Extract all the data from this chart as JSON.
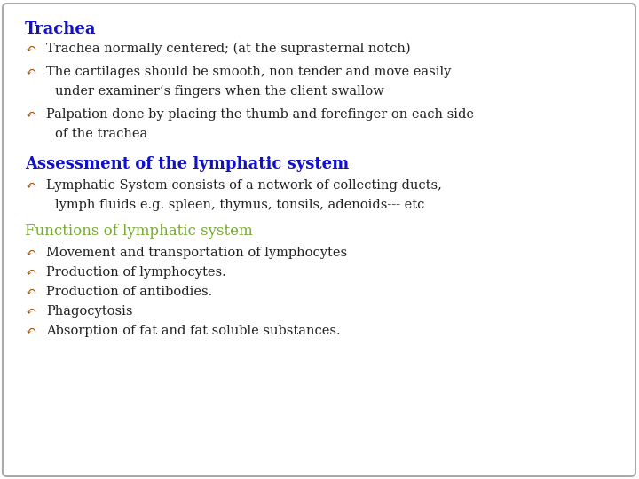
{
  "bg_color": "#ffffff",
  "border_color": "#aaaaaa",
  "title1": "Trachea",
  "title1_color": "#1111cc",
  "title2": "Assessment of the lymphatic system",
  "title2_color": "#1111cc",
  "title3": "Functions of lymphatic system",
  "title3_color": "#77aa33",
  "bullet_color": "#aa5500",
  "text_color": "#222222",
  "font_family": "DejaVu Serif",
  "title_fontsize": 13,
  "body_fontsize": 10.5,
  "section1_bullets": [
    "Trachea normally centered; (at the suprasternal notch)",
    "The cartilages should be smooth, non tender and move easily\nunder examiner’s fingers when the client swallow",
    "Palpation done by placing the thumb and forefinger on each side\nof the trachea"
  ],
  "section2_bullets": [
    "Lymphatic System consists of a network of collecting ducts,\nlymph fluids e.g. spleen, thymus, tonsils, adenoids--- etc"
  ],
  "section3_bullets": [
    "Movement and transportation of lymphocytes",
    "Production of lymphocytes.",
    "Production of antibodies.",
    "Phagocytosis",
    "Absorption of fat and fat soluble substances."
  ]
}
